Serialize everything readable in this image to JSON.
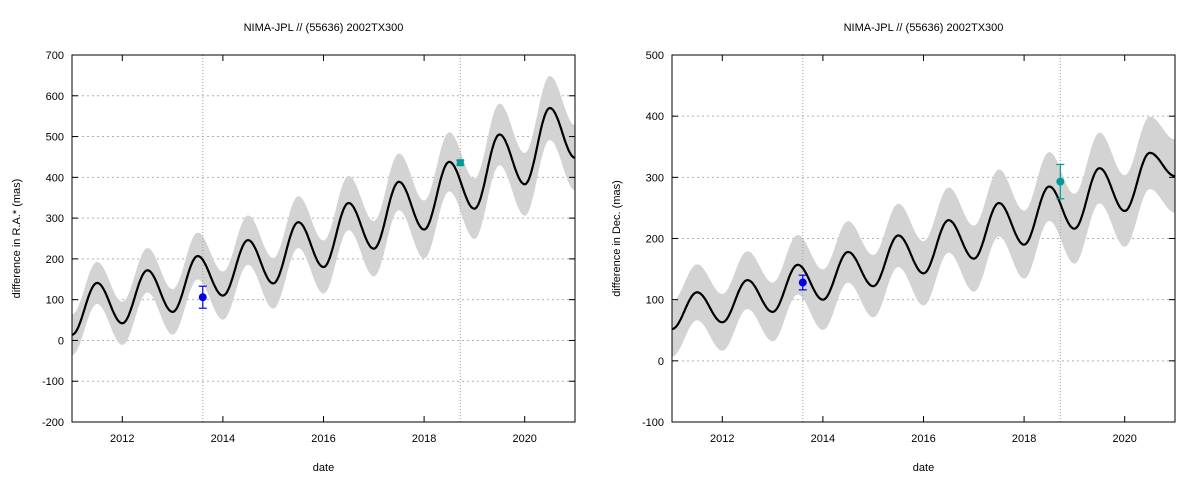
{
  "chart_data": [
    {
      "type": "line",
      "title": "NIMA-JPL // (55636) 2002TX300",
      "xlabel": "date",
      "ylabel": "difference in R.A.* (mas)",
      "xlim": [
        2011.0,
        2021.0
      ],
      "ylim": [
        -200,
        700
      ],
      "xticks": [
        2012,
        2014,
        2016,
        2018,
        2020
      ],
      "yticks": [
        -200,
        -100,
        0,
        100,
        200,
        300,
        400,
        500,
        600,
        700
      ],
      "grid": "horizontal dotted",
      "vlines": [
        2013.6,
        2018.72
      ],
      "series": [
        {
          "role": "mean",
          "color": "#000000",
          "x": [
            2011.0,
            2011.5,
            2012.0,
            2012.5,
            2013.0,
            2013.5,
            2014.0,
            2014.5,
            2015.0,
            2015.5,
            2016.0,
            2016.5,
            2017.0,
            2017.5,
            2018.0,
            2018.5,
            2019.0,
            2019.5,
            2020.0,
            2020.5,
            2021.0
          ],
          "y": [
            14,
            141,
            42,
            172,
            70,
            207,
            110,
            246,
            140,
            290,
            180,
            337,
            225,
            389,
            272,
            438,
            323,
            505,
            383,
            570,
            448
          ]
        }
      ],
      "band": {
        "color": "#d3d3d3",
        "halfwidth_start": 50,
        "halfwidth_end": 80
      },
      "points": [
        {
          "x": 2013.6,
          "y": 106,
          "err": 27,
          "color": "#0000e6",
          "marker": "circle"
        },
        {
          "x": 2018.72,
          "y": 436,
          "err": 6,
          "color": "#009999",
          "marker": "square"
        }
      ]
    },
    {
      "type": "line",
      "title": "NIMA-JPL // (55636) 2002TX300",
      "xlabel": "date",
      "ylabel": "difference in Dec. (mas)",
      "xlim": [
        2011.0,
        2021.0
      ],
      "ylim": [
        -100,
        500
      ],
      "xticks": [
        2012,
        2014,
        2016,
        2018,
        2020
      ],
      "yticks": [
        -100,
        0,
        100,
        200,
        300,
        400,
        500
      ],
      "grid": "horizontal dotted",
      "vlines": [
        2013.6,
        2018.72
      ],
      "series": [
        {
          "role": "mean",
          "color": "#000000",
          "x": [
            2011.0,
            2011.5,
            2012.0,
            2012.5,
            2013.0,
            2013.5,
            2014.0,
            2014.5,
            2015.0,
            2015.5,
            2016.0,
            2016.5,
            2017.0,
            2017.5,
            2018.0,
            2018.5,
            2019.0,
            2019.5,
            2020.0,
            2020.5,
            2021.0
          ],
          "y": [
            52,
            112,
            63,
            132,
            80,
            157,
            100,
            178,
            122,
            205,
            143,
            230,
            167,
            258,
            190,
            285,
            216,
            315,
            245,
            340,
            302
          ]
        }
      ],
      "band": {
        "color": "#d3d3d3",
        "halfwidth_start": 45,
        "halfwidth_end": 60
      },
      "points": [
        {
          "x": 2013.6,
          "y": 128,
          "err": 12,
          "color": "#0000e6",
          "marker": "circle"
        },
        {
          "x": 2018.72,
          "y": 293,
          "err": 28,
          "color": "#009999",
          "marker": "circle"
        }
      ]
    }
  ]
}
